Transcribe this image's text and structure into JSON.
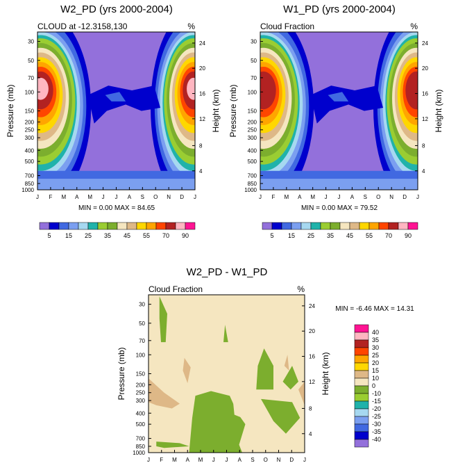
{
  "palette": [
    "#9370db",
    "#0000cd",
    "#4169e1",
    "#7b9ff0",
    "#a6d8f0",
    "#20b2aa",
    "#9acd32",
    "#7cae2e",
    "#f5e6c0",
    "#deb887",
    "#ffd700",
    "#ffa500",
    "#ff4500",
    "#b22222",
    "#ffb6c1",
    "#ff1493"
  ],
  "diff_palette": [
    "#9370db",
    "#0000cd",
    "#4169e1",
    "#7b9ff0",
    "#a6d8f0",
    "#20b2aa",
    "#9acd32",
    "#7cae2e",
    "#f5e6c0",
    "#deb887",
    "#ffd700",
    "#ffa500",
    "#ff4500",
    "#b22222",
    "#ffb6c1",
    "#ff1493"
  ],
  "chart_data": [
    {
      "type": "heatmap",
      "title": "W2_PD (yrs 2000-2004)",
      "subtitle_left": "CLOUD at -12.3158,130",
      "subtitle_right": "%",
      "ylabel": "Pressure (mb)",
      "y2label": "Height (km)",
      "x_ticks": [
        "J",
        "F",
        "M",
        "A",
        "M",
        "J",
        "J",
        "A",
        "S",
        "O",
        "N",
        "D",
        "J"
      ],
      "y_ticks": [
        "30",
        "50",
        "70",
        "100",
        "150",
        "200",
        "250",
        "300",
        "400",
        "500",
        "700",
        "850",
        "1000"
      ],
      "y2_ticks": [
        "24",
        "20",
        "16",
        "12",
        "8",
        "4"
      ],
      "stats": "MIN =   0.00 MAX =  84.65",
      "min": 0.0,
      "max": 84.65,
      "colorbar_labels": [
        "5",
        "15",
        "25",
        "35",
        "45",
        "55",
        "70",
        "90"
      ],
      "peak": "pink"
    },
    {
      "type": "heatmap",
      "title": "W1_PD (yrs 2000-2004)",
      "subtitle_left": "Cloud Fraction",
      "subtitle_right": "%",
      "ylabel": "Pressure (mb)",
      "y2label": "Height (km)",
      "x_ticks": [
        "J",
        "F",
        "M",
        "A",
        "M",
        "J",
        "J",
        "A",
        "S",
        "O",
        "N",
        "D",
        "J"
      ],
      "y_ticks": [
        "30",
        "50",
        "70",
        "100",
        "150",
        "200",
        "250",
        "300",
        "400",
        "500",
        "700",
        "850",
        "1000"
      ],
      "y2_ticks": [
        "24",
        "20",
        "16",
        "12",
        "8",
        "4"
      ],
      "stats": "MIN =   0.00 MAX =  79.52",
      "min": 0.0,
      "max": 79.52,
      "colorbar_labels": [
        "5",
        "15",
        "25",
        "35",
        "45",
        "55",
        "70",
        "90"
      ],
      "peak": "darkred"
    },
    {
      "type": "heatmap",
      "title": "W2_PD - W1_PD",
      "subtitle_left": "Cloud Fraction",
      "subtitle_right": "%",
      "ylabel": "Pressure (mb)",
      "y2label": "Height (km)",
      "x_ticks": [
        "J",
        "F",
        "M",
        "A",
        "M",
        "J",
        "J",
        "A",
        "S",
        "O",
        "N",
        "D",
        "J"
      ],
      "y_ticks": [
        "30",
        "50",
        "70",
        "100",
        "150",
        "200",
        "250",
        "300",
        "400",
        "500",
        "700",
        "850",
        "1000"
      ],
      "y2_ticks": [
        "24",
        "20",
        "16",
        "12",
        "8",
        "4"
      ],
      "stats": "MIN =  -6.46 MAX =  14.31",
      "min": -6.46,
      "max": 14.31,
      "colorbar_labels": [
        "40",
        "35",
        "30",
        "25",
        "20",
        "15",
        "10",
        "0",
        "-10",
        "-15",
        "-20",
        "-25",
        "-30",
        "-35",
        "-40"
      ]
    }
  ]
}
